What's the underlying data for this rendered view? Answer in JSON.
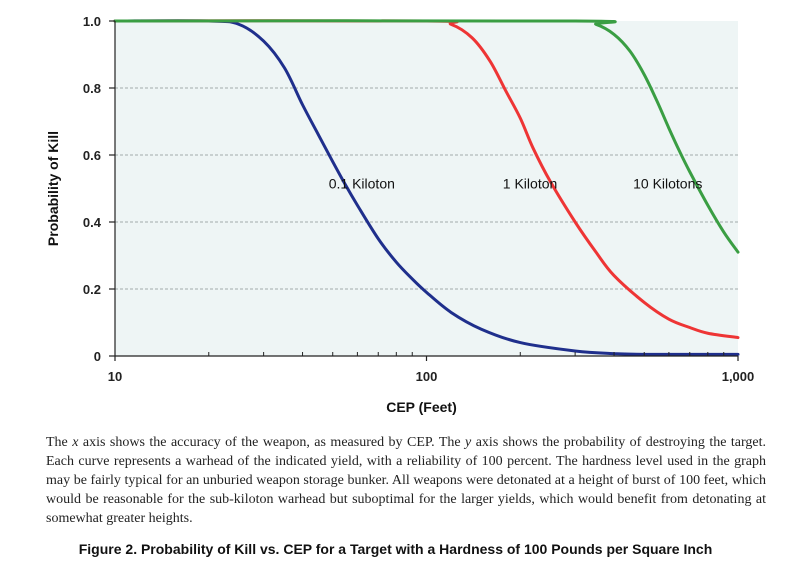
{
  "chart_data": {
    "type": "line",
    "xlabel": "CEP (Feet)",
    "ylabel": "Probability of Kill",
    "xscale": "log",
    "xlim": [
      10,
      1000
    ],
    "ylim": [
      0,
      1
    ],
    "x_tick_labels": [
      {
        "value": 10,
        "label": "10"
      },
      {
        "value": 100,
        "label": "100"
      },
      {
        "value": 1000,
        "label": "1,000"
      }
    ],
    "y_tick_labels": [
      {
        "value": 0,
        "label": "0"
      },
      {
        "value": 0.2,
        "label": "0.2"
      },
      {
        "value": 0.4,
        "label": "0.4"
      },
      {
        "value": 0.6,
        "label": "0.6"
      },
      {
        "value": 0.8,
        "label": "0.8"
      },
      {
        "value": 1.0,
        "label": "1.0"
      }
    ],
    "grid": "horizontal dashed",
    "plot_background": "#eef5f5",
    "series": [
      {
        "name": "0.1 Kiloton",
        "color": "#1f2f8c",
        "label_at": {
          "x": 62,
          "y": 0.5
        },
        "points": [
          [
            10,
            1.0
          ],
          [
            20,
            1.0
          ],
          [
            25,
            0.99
          ],
          [
            30,
            0.94
          ],
          [
            35,
            0.86
          ],
          [
            40,
            0.75
          ],
          [
            45,
            0.66
          ],
          [
            50,
            0.58
          ],
          [
            55,
            0.51
          ],
          [
            60,
            0.45
          ],
          [
            70,
            0.35
          ],
          [
            80,
            0.28
          ],
          [
            90,
            0.23
          ],
          [
            100,
            0.19
          ],
          [
            120,
            0.13
          ],
          [
            150,
            0.08
          ],
          [
            200,
            0.04
          ],
          [
            300,
            0.015
          ],
          [
            400,
            0.007
          ],
          [
            500,
            0.005
          ],
          [
            1000,
            0.005
          ]
        ]
      },
      {
        "name": "1 Kiloton",
        "color": "#ee3535",
        "label_at": {
          "x": 215,
          "y": 0.5
        },
        "points": [
          [
            10,
            1.0
          ],
          [
            100,
            1.0
          ],
          [
            120,
            0.99
          ],
          [
            140,
            0.95
          ],
          [
            160,
            0.88
          ],
          [
            180,
            0.79
          ],
          [
            200,
            0.71
          ],
          [
            220,
            0.62
          ],
          [
            250,
            0.52
          ],
          [
            300,
            0.4
          ],
          [
            350,
            0.31
          ],
          [
            400,
            0.24
          ],
          [
            500,
            0.16
          ],
          [
            600,
            0.11
          ],
          [
            700,
            0.085
          ],
          [
            800,
            0.068
          ],
          [
            1000,
            0.055
          ]
        ]
      },
      {
        "name": "10 Kilotons",
        "color": "#3a9e43",
        "label_at": {
          "x": 595,
          "y": 0.5
        },
        "points": [
          [
            10,
            1.0
          ],
          [
            300,
            1.0
          ],
          [
            350,
            0.99
          ],
          [
            400,
            0.96
          ],
          [
            450,
            0.91
          ],
          [
            500,
            0.84
          ],
          [
            550,
            0.76
          ],
          [
            600,
            0.68
          ],
          [
            650,
            0.61
          ],
          [
            700,
            0.55
          ],
          [
            800,
            0.45
          ],
          [
            900,
            0.37
          ],
          [
            1000,
            0.31
          ]
        ]
      }
    ]
  },
  "caption": {
    "part1": "The ",
    "x_var": "x",
    "part2": " axis shows the accuracy of the weapon, as measured by CEP. The ",
    "y_var": "y",
    "part3": " axis shows the probability of destroying the target. Each curve represents a warhead of the indicated yield, with a reliability of 100 percent. The hardness level used in the graph may be fairly typical for an unburied weapon storage bunker. All weapons were detonated at a height of burst of 100 feet, which would be reasonable for the sub-kiloton warhead but suboptimal for the larger yields, which would benefit from detonating at somewhat greater heights."
  },
  "figure_title": "Figure 2.  Probability of Kill vs. CEP for a Target with a Hardness of 100 Pounds per Square Inch"
}
